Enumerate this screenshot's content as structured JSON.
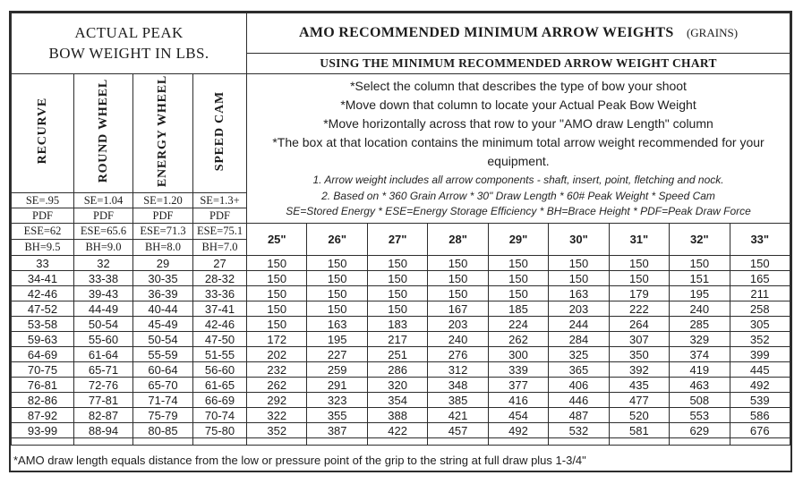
{
  "colors": {
    "page_background": "#ffffff",
    "text": "#1c1c1c",
    "border": "#2d2d2d"
  },
  "header": {
    "left_title_line1": "ACTUAL PEAK",
    "left_title_line2": "BOW WEIGHT IN LBS.",
    "right_title": "AMO RECOMMENDED MINIMUM ARROW WEIGHTS",
    "right_title_suffix": "(GRAINS)",
    "right_subtitle": "USING THE MINIMUM RECOMMENDED ARROW WEIGHT CHART"
  },
  "bow_types": [
    {
      "label": "RECURVE",
      "se": "SE=.95",
      "pdf": "PDF",
      "ese": "ESE=62",
      "bh": "BH=9.5"
    },
    {
      "label": "ROUND WHEEL",
      "se": "SE=1.04",
      "pdf": "PDF",
      "ese": "ESE=65.6",
      "bh": "BH=9.0"
    },
    {
      "label": "ENERGY WHEEL",
      "se": "SE=1.20",
      "pdf": "PDF",
      "ese": "ESE=71.3",
      "bh": "BH=8.0"
    },
    {
      "label": "SPEED CAM",
      "se": "SE=1.3+",
      "pdf": "PDF",
      "ese": "ESE=75.1",
      "bh": "BH=7.0"
    }
  ],
  "instructions": [
    "*Select the column that describes the type of bow your shoot",
    "*Move down that column to locate your Actual Peak Bow Weight",
    "*Move horizontally across that row to your \"AMO draw Length\" column",
    "*The box at that location contains the minimum total arrow weight recommended for your equipment."
  ],
  "notes": [
    "1. Arrow weight includes all arrow components - shaft, insert, point, fletching and nock.",
    "2. Based on * 360 Grain Arrow * 30\" Draw Length * 60# Peak Weight * Speed Cam",
    "SE=Stored Energy * ESE=Energy Storage Efficiency * BH=Brace Height * PDF=Peak Draw Force"
  ],
  "draw_length_headers": [
    "25\"",
    "26\"",
    "27\"",
    "28\"",
    "29\"",
    "30\"",
    "31\"",
    "32\"",
    "33\""
  ],
  "rows": [
    {
      "bow_weights": [
        "33",
        "32",
        "29",
        "27"
      ],
      "arrow_weights": [
        "150",
        "150",
        "150",
        "150",
        "150",
        "150",
        "150",
        "150",
        "150"
      ]
    },
    {
      "bow_weights": [
        "34-41",
        "33-38",
        "30-35",
        "28-32"
      ],
      "arrow_weights": [
        "150",
        "150",
        "150",
        "150",
        "150",
        "150",
        "150",
        "151",
        "165"
      ]
    },
    {
      "bow_weights": [
        "42-46",
        "39-43",
        "36-39",
        "33-36"
      ],
      "arrow_weights": [
        "150",
        "150",
        "150",
        "150",
        "150",
        "163",
        "179",
        "195",
        "211"
      ]
    },
    {
      "bow_weights": [
        "47-52",
        "44-49",
        "40-44",
        "37-41"
      ],
      "arrow_weights": [
        "150",
        "150",
        "150",
        "167",
        "185",
        "203",
        "222",
        "240",
        "258"
      ]
    },
    {
      "bow_weights": [
        "53-58",
        "50-54",
        "45-49",
        "42-46"
      ],
      "arrow_weights": [
        "150",
        "163",
        "183",
        "203",
        "224",
        "244",
        "264",
        "285",
        "305"
      ]
    },
    {
      "bow_weights": [
        "59-63",
        "55-60",
        "50-54",
        "47-50"
      ],
      "arrow_weights": [
        "172",
        "195",
        "217",
        "240",
        "262",
        "284",
        "307",
        "329",
        "352"
      ]
    },
    {
      "bow_weights": [
        "64-69",
        "61-64",
        "55-59",
        "51-55"
      ],
      "arrow_weights": [
        "202",
        "227",
        "251",
        "276",
        "300",
        "325",
        "350",
        "374",
        "399"
      ]
    },
    {
      "bow_weights": [
        "70-75",
        "65-71",
        "60-64",
        "56-60"
      ],
      "arrow_weights": [
        "232",
        "259",
        "286",
        "312",
        "339",
        "365",
        "392",
        "419",
        "445"
      ]
    },
    {
      "bow_weights": [
        "76-81",
        "72-76",
        "65-70",
        "61-65"
      ],
      "arrow_weights": [
        "262",
        "291",
        "320",
        "348",
        "377",
        "406",
        "435",
        "463",
        "492"
      ]
    },
    {
      "bow_weights": [
        "82-86",
        "77-81",
        "71-74",
        "66-69"
      ],
      "arrow_weights": [
        "292",
        "323",
        "354",
        "385",
        "416",
        "446",
        "477",
        "508",
        "539"
      ]
    },
    {
      "bow_weights": [
        "87-92",
        "82-87",
        "75-79",
        "70-74"
      ],
      "arrow_weights": [
        "322",
        "355",
        "388",
        "421",
        "454",
        "487",
        "520",
        "553",
        "586"
      ]
    },
    {
      "bow_weights": [
        "93-99",
        "88-94",
        "80-85",
        "75-80"
      ],
      "arrow_weights": [
        "352",
        "387",
        "422",
        "457",
        "492",
        "532",
        "581",
        "629",
        "676"
      ]
    }
  ],
  "footer_note": "*AMO draw length equals distance from the low or pressure point of the grip to the string at full draw plus 1-3/4\""
}
